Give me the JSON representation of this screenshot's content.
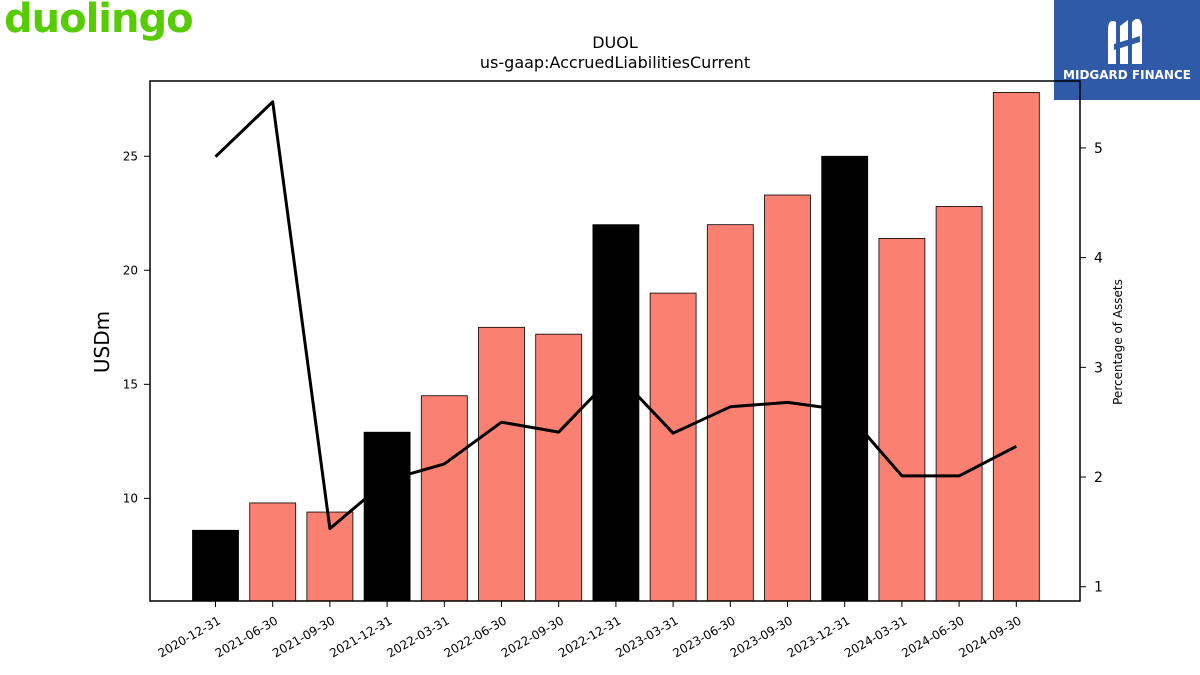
{
  "brand": {
    "left_logo": "duolingo",
    "right_logo": "MIDGARD FINANCE",
    "left_color": "#58cc02",
    "right_bg": "#2f5aa8"
  },
  "chart_data": {
    "type": "bar",
    "title": "DUOL",
    "subtitle": "us-gaap:AccruedLiabilitiesCurrent",
    "ylabel": "USDm",
    "ylabel_right": "Percentage of Assets",
    "categories": [
      "2020-12-31",
      "2021-06-30",
      "2021-09-30",
      "2021-12-31",
      "2022-03-31",
      "2022-06-30",
      "2022-09-30",
      "2022-12-31",
      "2023-03-31",
      "2023-06-30",
      "2023-09-30",
      "2023-12-31",
      "2024-03-31",
      "2024-06-30",
      "2024-09-30"
    ],
    "series": [
      {
        "kind": "bar",
        "axis": "left",
        "values": [
          8.6,
          9.8,
          9.4,
          12.9,
          14.5,
          17.5,
          17.2,
          22.0,
          19.0,
          22.0,
          23.3,
          25.0,
          21.4,
          22.8,
          27.8
        ],
        "colors": [
          "#000000",
          "#fa8072",
          "#fa8072",
          "#000000",
          "#fa8072",
          "#fa8072",
          "#fa8072",
          "#000000",
          "#fa8072",
          "#fa8072",
          "#fa8072",
          "#000000",
          "#fa8072",
          "#fa8072",
          "#fa8072"
        ]
      },
      {
        "kind": "line",
        "axis": "right",
        "color": "#000000",
        "values": [
          4.92,
          5.42,
          1.53,
          1.97,
          2.12,
          2.5,
          2.41,
          2.95,
          2.4,
          2.64,
          2.68,
          2.61,
          2.01,
          2.01,
          2.28
        ]
      }
    ],
    "ylim": [
      5.5,
      28.3
    ],
    "yticks": [
      10,
      15,
      20,
      25
    ],
    "ylim_right": [
      0.87,
      5.61
    ],
    "yticks_right": [
      1,
      2,
      3,
      4,
      5
    ],
    "grid": false,
    "legend": "none"
  }
}
